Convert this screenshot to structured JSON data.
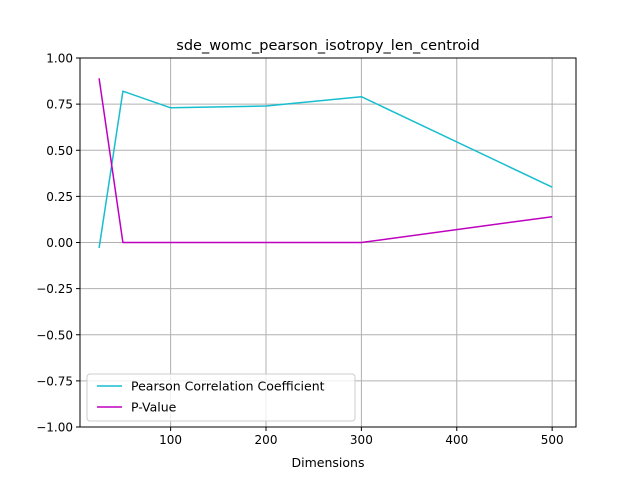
{
  "chart_data": {
    "type": "line",
    "title": "sde_womc_pearson_isotropy_len_centroid",
    "xlabel": "Dimensions",
    "ylabel": "",
    "x": [
      25,
      50,
      100,
      200,
      300,
      500
    ],
    "xlim": [
      5,
      525
    ],
    "ylim": [
      -1.0,
      1.0
    ],
    "xticks": [
      100,
      200,
      300,
      400,
      500
    ],
    "yticks": [
      -1.0,
      -0.75,
      -0.5,
      -0.25,
      0.0,
      0.25,
      0.5,
      0.75,
      1.0
    ],
    "xtick_labels": [
      "100",
      "200",
      "300",
      "400",
      "500"
    ],
    "ytick_labels": [
      "−1.00",
      "−0.75",
      "−0.50",
      "−0.25",
      "0.00",
      "0.25",
      "0.50",
      "0.75",
      "1.00"
    ],
    "grid": true,
    "legend_position": "lower-left",
    "series": [
      {
        "name": "Pearson Correlation Coefficient",
        "color": "#17becf",
        "values": [
          -0.03,
          0.82,
          0.73,
          0.74,
          0.79,
          0.3
        ]
      },
      {
        "name": "P-Value",
        "color": "#bf00bf",
        "values": [
          0.89,
          0.0,
          0.0,
          0.0,
          0.0,
          0.14
        ]
      }
    ]
  }
}
